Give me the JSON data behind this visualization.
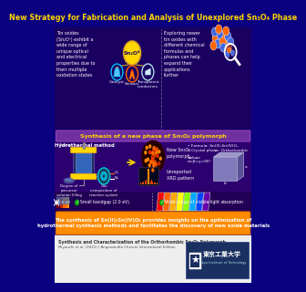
{
  "title": "New Strategy for Fabrication and Analysis of Unexplored Sn₃O₄ Phase",
  "title_color": "#FFD700",
  "title_bg": "#0a0080",
  "top_bg": "#1a0060",
  "mid_bg": "#2d0070",
  "mid_header_bg": "#7030A0",
  "mid_header_text": "Synthesis of a new phase of Sn₃O₄ polymorph",
  "mid_header_color": "#FFD700",
  "banner_bg": "#FF8C00",
  "banner_text1": "The synthesis of Sn(II)₂Sn(IV)O₄ provides insights on the optimization of",
  "banner_text2": "hydrothermal synthesis methods and facilitates the discovery of new oxide materials",
  "footer_bg": "#EEEEEE",
  "footer_text1": "Synthesis and Characterization of the Orthorhombic Sn₃O₄ Polymorph",
  "footer_text2": "Miyauchi et al. (2021) | Angewandte Chemie International Edition",
  "left_text": "Tin oxides\n(Sn₂O⁴) exhibit a\nwide range of\nunique optical\nand electrical\nproperties due to\ntheir multiple\noxidation states",
  "right_text": "Exploring newer\ntin oxides with\ndifferent chemical\nformulas and\nphases can help\nexpand their\napplications\nfurther",
  "sno_label": "Sn₂O⁴",
  "catalyst_label": "Catalyst",
  "sensor_label": "Sensors",
  "transparent_label": "Transparent\nconductors",
  "hydrothermal_label": "Hydrothermal method",
  "tuning_label": "Tuning",
  "degree_label": "Degree of\nprecursor\nsolution filling",
  "gas_label": "Gas\ncomposition of\nreaction system",
  "o2_label": "O₂",
  "n2_label": "N₂",
  "new_poly_label": "New Sn₃O₄\npolymorph",
  "unreported_label": "Unreported\nXRD pattern",
  "formula_text": "Formula: Sn(II)₂Sn(IV)O₄",
  "crystal_text": "Crystal phase: Orthorhombic",
  "lattice_text": "a≠b≠c",
  "lattice_text2": "α=β=γ=90°",
  "bandgap_label": "2.0 eV",
  "bandgap_text": "Small bandgap (2.0 eV)",
  "absorption_text": "Wide range of visible-light absorption"
}
